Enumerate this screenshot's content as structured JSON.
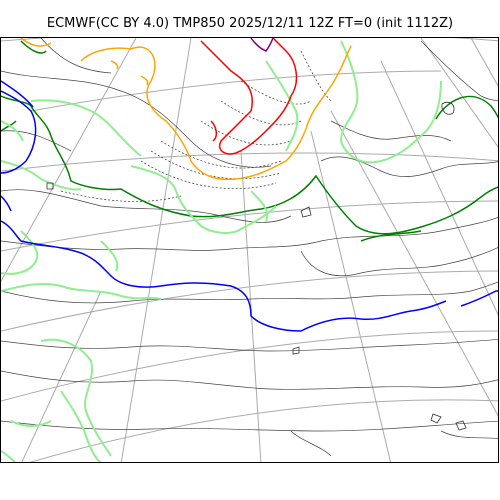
{
  "figure": {
    "title": "ECMWF(CC BY 4.0) TMP850 2025/12/11 12Z FT=0 (init 1112Z)"
  },
  "map": {
    "projection": "polar stereographic",
    "variable": "TMP850",
    "colors": {
      "graticule": "#aaaaaa",
      "isotherm_minor": "#000000",
      "isotherm_dotted": "#000000",
      "isotherm_green": "#008000",
      "isotherm_lightgreen": "#90ee90",
      "isotherm_blue": "#0000ff",
      "isotherm_orange": "#ffa500",
      "isotherm_red": "#ff0000",
      "isotherm_purple": "#800080"
    }
  }
}
